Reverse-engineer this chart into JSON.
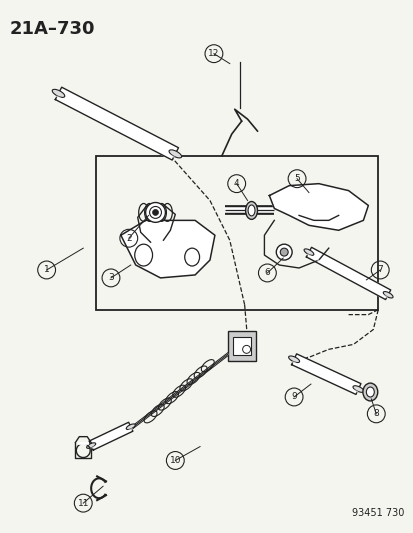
{
  "title": "21A–730",
  "footer": "93451 730",
  "bg": "#f5f5f0",
  "lc": "#222222",
  "fig_w": 4.14,
  "fig_h": 5.33,
  "dpi": 100
}
